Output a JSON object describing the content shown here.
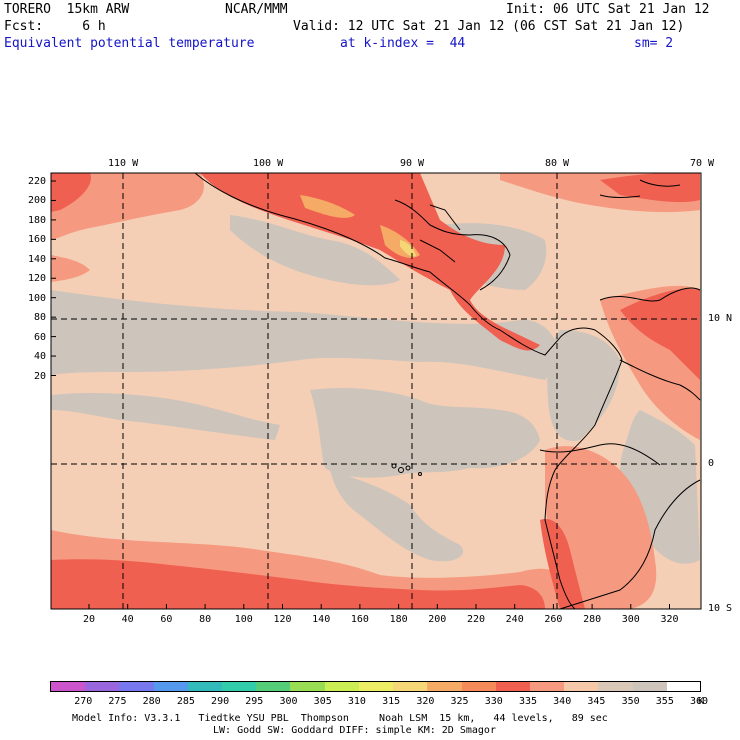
{
  "header": {
    "model": "TORERO  15km ARW",
    "center": "NCAR/MMM",
    "init": "Init: 06 UTC Sat 21 Jan 12",
    "fcst": "Fcst:     6 h",
    "valid": "Valid: 12 UTC Sat 21 Jan 12 (06 CST Sat 21 Jan 12)",
    "field": "Equivalent potential temperature",
    "level": "at k-index =  44",
    "smooth": "sm= 2"
  },
  "map": {
    "lon_labels": [
      "110 W",
      "100 W",
      "90 W",
      "80 W",
      "70 W"
    ],
    "lat_labels": [
      "10 N",
      "0",
      "10 S"
    ],
    "y_ticks": [
      "220",
      "200",
      "180",
      "160",
      "140",
      "120",
      "100",
      "80",
      "60",
      "40",
      "20"
    ],
    "x_ticks": [
      "20",
      "40",
      "60",
      "80",
      "100",
      "120",
      "140",
      "160",
      "180",
      "200",
      "220",
      "240",
      "260",
      "280",
      "300",
      "320"
    ]
  },
  "colorbar": {
    "unit": "K",
    "labels": [
      "270",
      "275",
      "280",
      "285",
      "290",
      "295",
      "300",
      "305",
      "310",
      "315",
      "320",
      "325",
      "330",
      "335",
      "340",
      "345",
      "350",
      "355",
      "360"
    ],
    "colors": [
      "#cc55cc",
      "#9966dd",
      "#7777ee",
      "#5599ee",
      "#33bbbb",
      "#33ccaa",
      "#55cc77",
      "#99dd55",
      "#ccee55",
      "#eeee66",
      "#f5d777",
      "#f5aa66",
      "#f58a5a",
      "#f06050",
      "#f59a80",
      "#f5c8aa",
      "#d9c8b8",
      "#cdc4bc",
      "#ffffff"
    ]
  },
  "footer": {
    "line1": "Model Info: V3.3.1   Tiedtke YSU PBL  Thompson     Noah LSM  15 km,   44 levels,   89 sec",
    "line2": "LW: Godd SW: Goddard DIFF: simple KM: 2D Smagor"
  }
}
